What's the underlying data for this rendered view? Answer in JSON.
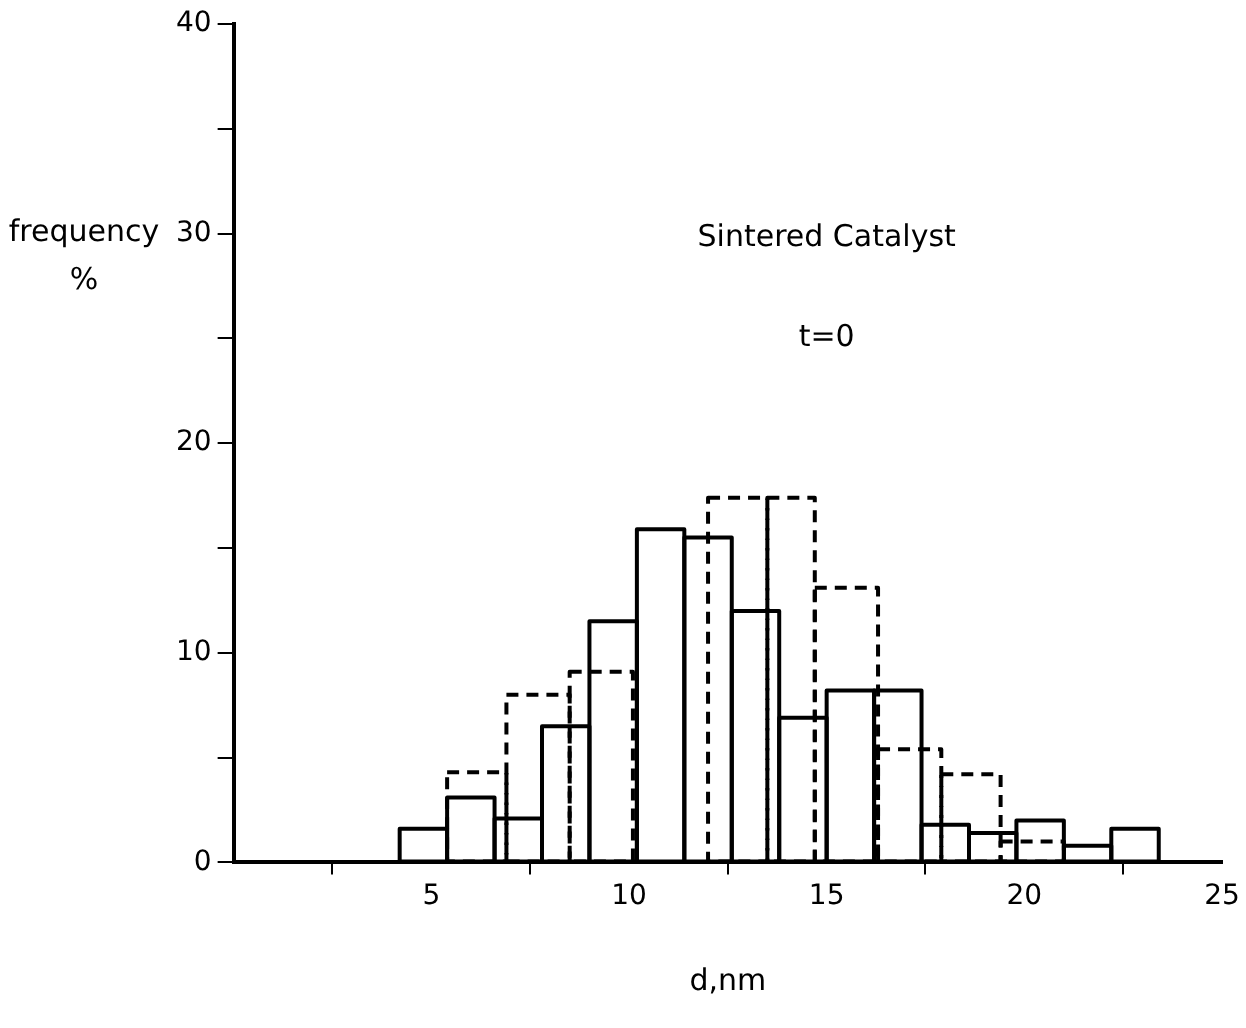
{
  "chart_data": {
    "type": "histogram",
    "xlabel": "d,nm",
    "ylabel": "frequency %",
    "annotations": [
      "Sintered Catalyst",
      "t=0"
    ],
    "bins": [
      4.2,
      5.4,
      6.6,
      7.8,
      9.0,
      10.2,
      11.4,
      12.6,
      13.8,
      15.0,
      16.2,
      17.4,
      18.6,
      19.8,
      21.0,
      22.2,
      23.4
    ],
    "series": [
      {
        "color": "#000000",
        "line_style": "solid",
        "values": [
          1.6,
          3.1,
          2.1,
          6.5,
          11.5,
          15.9,
          15.5,
          12.0,
          6.9,
          8.2,
          8.2,
          1.8,
          1.4,
          2.0,
          0.8,
          1.6
        ]
      },
      {
        "color": "#000000",
        "line_style": "dashed",
        "bins": [
          5.4,
          6.9,
          8.5,
          10.1,
          12.0,
          13.5,
          14.7,
          16.3,
          17.9,
          19.4,
          21.0
        ],
        "values": [
          4.3,
          8.0,
          9.1,
          null,
          17.4,
          17.4,
          13.1,
          5.4,
          4.2,
          1.0
        ]
      }
    ],
    "xlim": [
      0,
      25
    ],
    "xticks": [
      5,
      10,
      15,
      20,
      25
    ],
    "ylim": [
      0,
      40
    ],
    "yticks": [
      0,
      {
        "value": 5,
        "label": null
      },
      10,
      {
        "value": 15,
        "label": null
      },
      20,
      {
        "value": 25,
        "label": null
      },
      30,
      {
        "value": 35,
        "label": null
      },
      40
    ],
    "grid": false,
    "legend": false
  }
}
